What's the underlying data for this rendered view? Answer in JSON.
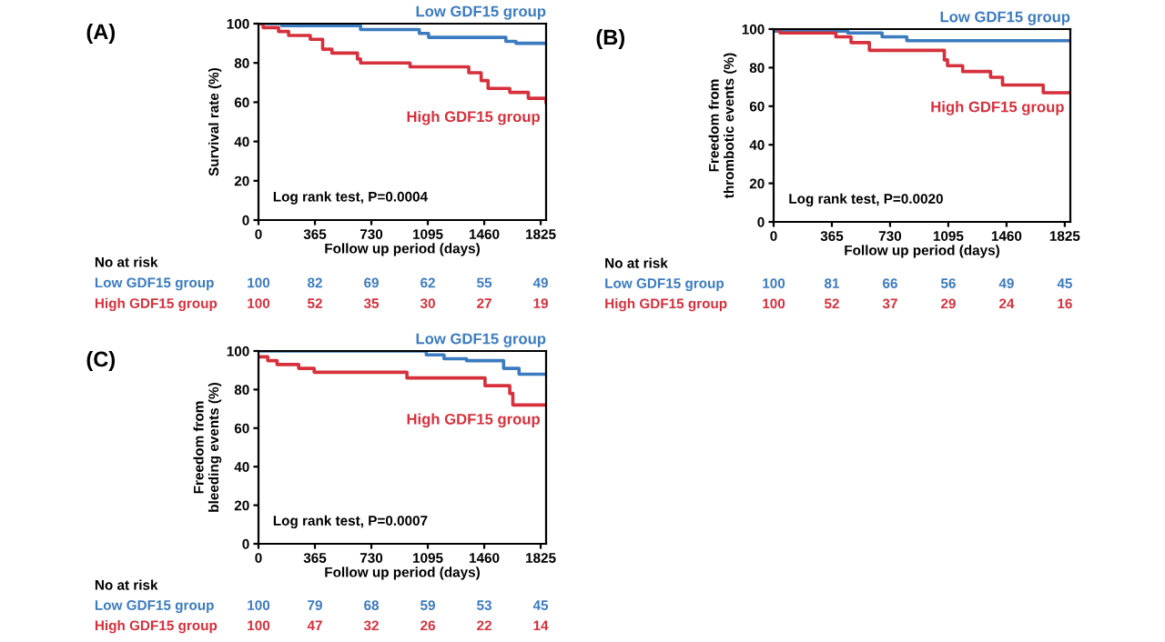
{
  "chart_data": [
    {
      "type": "step",
      "title": "(A)",
      "ylabel": "Survival rate (%)",
      "xlabel": "Follow up period (days)",
      "xlim": [
        0,
        1860
      ],
      "ylim": [
        0,
        100
      ],
      "xticks": [
        0,
        365,
        730,
        1095,
        1460,
        1825
      ],
      "yticks": [
        0,
        20,
        40,
        60,
        80,
        100
      ],
      "grid": false,
      "legend": false,
      "series": [
        {
          "name": "Low GDF15 group",
          "color": "#3b7bbf",
          "x": [
            0,
            150,
            660,
            1040,
            1100,
            1600,
            1665,
            1860
          ],
          "values": [
            100,
            99,
            97,
            95,
            93,
            91,
            90,
            90
          ]
        },
        {
          "name": "High GDF15 group",
          "color": "#d6303c",
          "x": [
            0,
            30,
            130,
            195,
            335,
            415,
            475,
            640,
            660,
            980,
            1360,
            1440,
            1485,
            1625,
            1745,
            1860
          ],
          "values": [
            100,
            98,
            96,
            94,
            92,
            87,
            85,
            82,
            80,
            78,
            75,
            71,
            67,
            65,
            62,
            60
          ]
        }
      ],
      "annotations": [
        "Log rank test, P=0.0004",
        "No at risk",
        "100",
        "82",
        "69",
        "62",
        "55",
        "49",
        "100",
        "52",
        "35",
        "30",
        "27",
        "19"
      ]
    },
    {
      "type": "step",
      "title": "(B)",
      "ylabel": "Freedom from\nthrombotic events (%)",
      "xlabel": "Follow up period (days)",
      "xlim": [
        0,
        1860
      ],
      "ylim": [
        0,
        100
      ],
      "xticks": [
        0,
        365,
        730,
        1095,
        1460,
        1825
      ],
      "yticks": [
        0,
        20,
        40,
        60,
        80,
        100
      ],
      "grid": false,
      "legend": false,
      "series": [
        {
          "name": "Low GDF15 group",
          "color": "#3b7bbf",
          "x": [
            0,
            10,
            465,
            680,
            835,
            1860
          ],
          "values": [
            100,
            99,
            98,
            96,
            94,
            94
          ]
        },
        {
          "name": "High GDF15 group",
          "color": "#d6303c",
          "x": [
            0,
            40,
            390,
            485,
            600,
            1070,
            1090,
            1185,
            1360,
            1435,
            1690,
            1860
          ],
          "values": [
            100,
            98,
            96,
            93,
            89,
            84,
            81,
            78,
            75,
            71,
            67,
            67
          ]
        }
      ],
      "annotations": [
        "Log rank test, P=0.0020",
        "No at risk",
        "100",
        "81",
        "66",
        "56",
        "49",
        "45",
        "100",
        "52",
        "37",
        "29",
        "24",
        "16"
      ]
    },
    {
      "type": "step",
      "title": "(C)",
      "ylabel": "Freedom from\nbleeding events (%)",
      "xlabel": "Follow up period (days)",
      "xlim": [
        0,
        1860
      ],
      "ylim": [
        0,
        100
      ],
      "xticks": [
        0,
        365,
        730,
        1095,
        1460,
        1825
      ],
      "yticks": [
        0,
        20,
        40,
        60,
        80,
        100
      ],
      "grid": false,
      "legend": false,
      "series": [
        {
          "name": "Low GDF15 group",
          "color": "#3b7bbf",
          "x": [
            0,
            1085,
            1200,
            1345,
            1585,
            1685,
            1860
          ],
          "values": [
            100,
            98,
            96,
            95,
            91,
            88,
            88
          ]
        },
        {
          "name": "High GDF15 group",
          "color": "#d6303c",
          "x": [
            0,
            60,
            120,
            260,
            360,
            960,
            1465,
            1625,
            1645,
            1860
          ],
          "values": [
            97,
            95,
            93,
            91,
            89,
            86,
            82,
            78,
            72,
            72
          ]
        }
      ],
      "annotations": [
        "Log rank test, P=0.0007",
        "No at risk",
        "100",
        "79",
        "68",
        "59",
        "53",
        "45",
        "100",
        "47",
        "32",
        "26",
        "22",
        "14"
      ]
    }
  ]
}
